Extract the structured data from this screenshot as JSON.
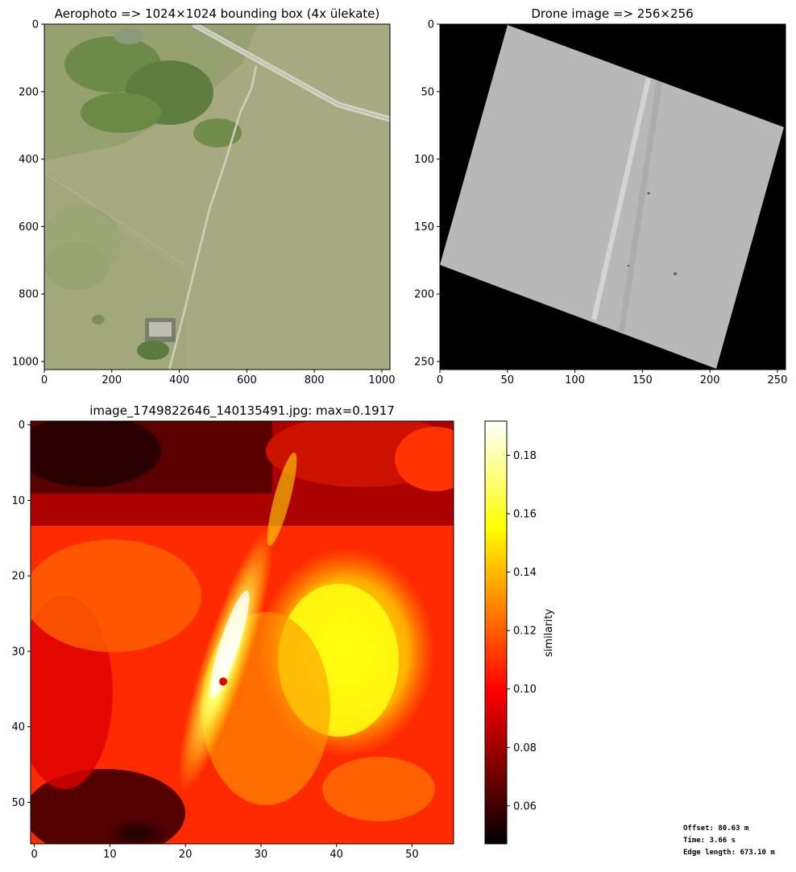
{
  "chart_data": [
    {
      "type": "image",
      "title": "Aerophoto => 1024×1024 bounding box (4x ülekate)",
      "xlim": [
        0,
        1024
      ],
      "ylim": [
        1024,
        0
      ],
      "xticks": [
        "0",
        "200",
        "400",
        "600",
        "800",
        "1000"
      ],
      "yticks": [
        "0",
        "200",
        "400",
        "600",
        "800",
        "1000"
      ],
      "colors": {
        "field": "#a5a97f",
        "field_dark": "#8f986c",
        "forest": "#5d7c3f",
        "road": "#d8d8c6"
      }
    },
    {
      "type": "image",
      "title": "Drone image => 256×256",
      "xlim": [
        0,
        256
      ],
      "ylim": [
        256,
        0
      ],
      "xticks": [
        "0",
        "50",
        "100",
        "150",
        "200",
        "250"
      ],
      "yticks": [
        "0",
        "50",
        "100",
        "150",
        "200",
        "250"
      ],
      "colors": {
        "background": "#000000",
        "tile": "#b7b7b7",
        "stripe": "#d6d6d6"
      }
    },
    {
      "type": "heatmap",
      "title": "image_1749822646_140135491.jpg: max=0.1917",
      "xlim": [
        -0.5,
        55.5
      ],
      "ylim": [
        55.5,
        -0.5
      ],
      "xticks": [
        "0",
        "10",
        "20",
        "30",
        "40",
        "50"
      ],
      "yticks": [
        "0",
        "10",
        "20",
        "30",
        "40",
        "50"
      ],
      "max_value": 0.1917,
      "max_location": {
        "x": 25,
        "y": 34
      },
      "colormap": "hot",
      "colorbar": {
        "label": "similarity",
        "range": [
          0.047,
          0.1917
        ],
        "ticks": [
          "0.06",
          "0.08",
          "0.10",
          "0.12",
          "0.14",
          "0.16",
          "0.18"
        ]
      },
      "marker_color": "#e00000"
    }
  ],
  "stats": {
    "offset": "Offset: 80.63 m",
    "time": "Time: 3.66 s",
    "edge_length": "Edge length: 673.10 m"
  }
}
